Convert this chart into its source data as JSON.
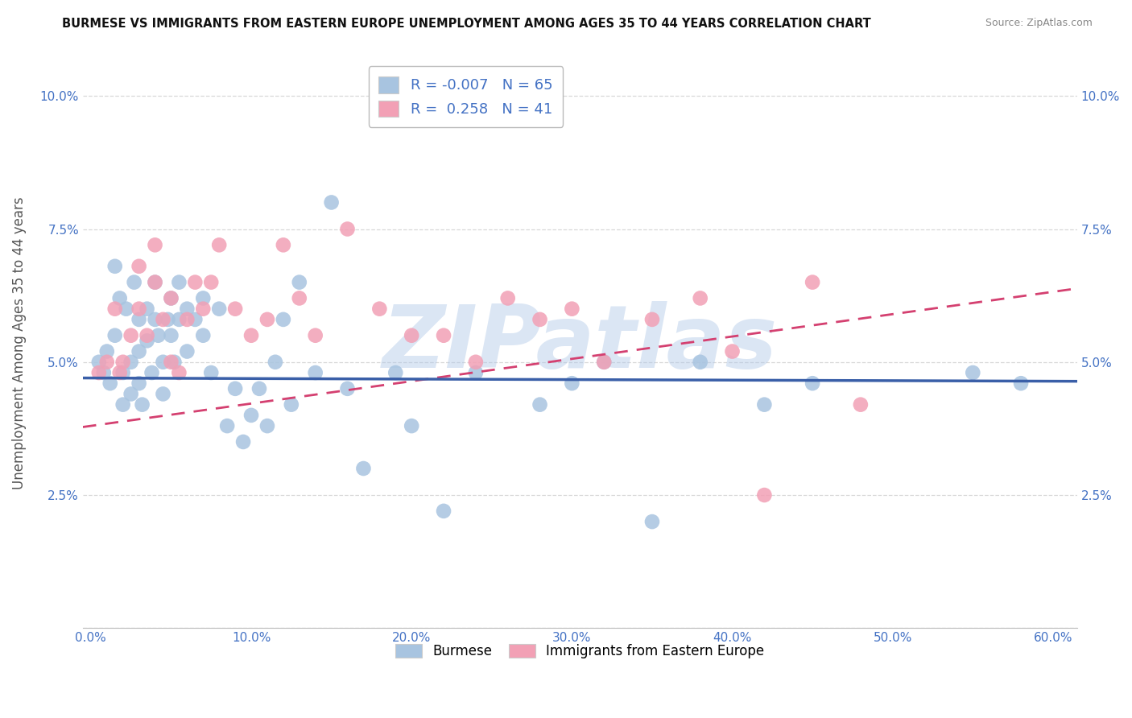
{
  "title": "BURMESE VS IMMIGRANTS FROM EASTERN EUROPE UNEMPLOYMENT AMONG AGES 35 TO 44 YEARS CORRELATION CHART",
  "source": "Source: ZipAtlas.com",
  "ylabel": "Unemployment Among Ages 35 to 44 years",
  "xlim": [
    -0.005,
    0.615
  ],
  "ylim": [
    0.0,
    0.107
  ],
  "xticks": [
    0.0,
    0.1,
    0.2,
    0.3,
    0.4,
    0.5,
    0.6
  ],
  "xticklabels": [
    "0.0%",
    "10.0%",
    "20.0%",
    "30.0%",
    "40.0%",
    "50.0%",
    "60.0%"
  ],
  "yticks": [
    0.0,
    0.025,
    0.05,
    0.075,
    0.1
  ],
  "yticklabels_left": [
    "",
    "2.5%",
    "5.0%",
    "7.5%",
    "10.0%"
  ],
  "yticklabels_right": [
    "",
    "2.5%",
    "5.0%",
    "7.5%",
    "10.0%"
  ],
  "blue_fill": "#a8c4e0",
  "blue_line": "#3a5fa8",
  "pink_fill": "#f2a0b5",
  "pink_line": "#d44070",
  "R_blue": -0.007,
  "N_blue": 65,
  "R_pink": 0.258,
  "N_pink": 41,
  "watermark": "ZIPatlas",
  "background_color": "#ffffff",
  "grid_color": "#d8d8d8",
  "tick_color": "#4472c4",
  "blue_scatter_x": [
    0.005,
    0.008,
    0.01,
    0.012,
    0.015,
    0.015,
    0.018,
    0.02,
    0.02,
    0.022,
    0.025,
    0.025,
    0.027,
    0.03,
    0.03,
    0.03,
    0.032,
    0.035,
    0.035,
    0.038,
    0.04,
    0.04,
    0.042,
    0.045,
    0.045,
    0.048,
    0.05,
    0.05,
    0.052,
    0.055,
    0.055,
    0.06,
    0.06,
    0.065,
    0.07,
    0.07,
    0.075,
    0.08,
    0.085,
    0.09,
    0.095,
    0.1,
    0.105,
    0.11,
    0.115,
    0.12,
    0.125,
    0.13,
    0.14,
    0.15,
    0.16,
    0.17,
    0.19,
    0.2,
    0.22,
    0.24,
    0.28,
    0.3,
    0.32,
    0.35,
    0.38,
    0.42,
    0.45,
    0.55,
    0.58
  ],
  "blue_scatter_y": [
    0.05,
    0.048,
    0.052,
    0.046,
    0.068,
    0.055,
    0.062,
    0.048,
    0.042,
    0.06,
    0.05,
    0.044,
    0.065,
    0.058,
    0.052,
    0.046,
    0.042,
    0.06,
    0.054,
    0.048,
    0.065,
    0.058,
    0.055,
    0.05,
    0.044,
    0.058,
    0.062,
    0.055,
    0.05,
    0.065,
    0.058,
    0.06,
    0.052,
    0.058,
    0.062,
    0.055,
    0.048,
    0.06,
    0.038,
    0.045,
    0.035,
    0.04,
    0.045,
    0.038,
    0.05,
    0.058,
    0.042,
    0.065,
    0.048,
    0.08,
    0.045,
    0.03,
    0.048,
    0.038,
    0.022,
    0.048,
    0.042,
    0.046,
    0.05,
    0.02,
    0.05,
    0.042,
    0.046,
    0.048,
    0.046
  ],
  "pink_scatter_x": [
    0.005,
    0.01,
    0.015,
    0.018,
    0.02,
    0.025,
    0.03,
    0.03,
    0.035,
    0.04,
    0.04,
    0.045,
    0.05,
    0.05,
    0.055,
    0.06,
    0.065,
    0.07,
    0.075,
    0.08,
    0.09,
    0.1,
    0.11,
    0.12,
    0.13,
    0.14,
    0.16,
    0.18,
    0.2,
    0.22,
    0.24,
    0.26,
    0.28,
    0.3,
    0.32,
    0.35,
    0.38,
    0.4,
    0.42,
    0.45,
    0.48
  ],
  "pink_scatter_y": [
    0.048,
    0.05,
    0.06,
    0.048,
    0.05,
    0.055,
    0.06,
    0.068,
    0.055,
    0.065,
    0.072,
    0.058,
    0.05,
    0.062,
    0.048,
    0.058,
    0.065,
    0.06,
    0.065,
    0.072,
    0.06,
    0.055,
    0.058,
    0.072,
    0.062,
    0.055,
    0.075,
    0.06,
    0.055,
    0.055,
    0.05,
    0.062,
    0.058,
    0.06,
    0.05,
    0.058,
    0.062,
    0.052,
    0.025,
    0.065,
    0.042
  ]
}
